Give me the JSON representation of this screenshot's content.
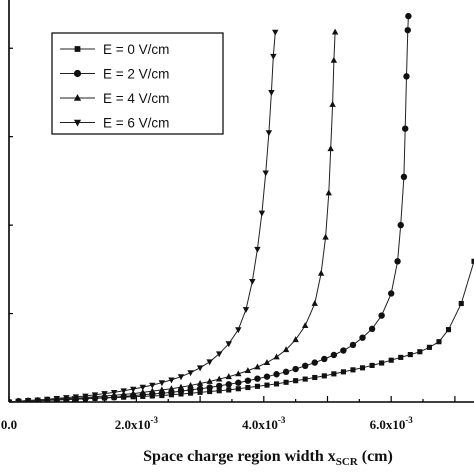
{
  "chart_data": {
    "type": "line",
    "xlabel": "Space charge region width x",
    "xlabel_sub": "SCR",
    "xlabel_unit": " (cm)",
    "ylabel": "",
    "xlim": [
      0,
      0.0073
    ],
    "ylim": [
      0,
      1.0
    ],
    "x_ticks": [
      {
        "value": 0,
        "label": "0.0"
      },
      {
        "value": 0.002,
        "label": "2.0x10",
        "exp": "-3"
      },
      {
        "value": 0.004,
        "label": "4.0x10",
        "exp": "-3"
      },
      {
        "value": 0.006,
        "label": "6.0x10",
        "exp": "-3"
      }
    ],
    "legend_position": "top-left",
    "series": [
      {
        "name": "E = 0 V/cm",
        "marker": "square",
        "points": [
          [
            0,
            0
          ],
          [
            0.00015,
            0.001
          ],
          [
            0.0003,
            0.002
          ],
          [
            0.00045,
            0.003
          ],
          [
            0.0006,
            0.004
          ],
          [
            0.00075,
            0.005
          ],
          [
            0.0009,
            0.006
          ],
          [
            0.00105,
            0.007
          ],
          [
            0.0012,
            0.008
          ],
          [
            0.00135,
            0.009
          ],
          [
            0.0015,
            0.01
          ],
          [
            0.00165,
            0.011
          ],
          [
            0.0018,
            0.012
          ],
          [
            0.00195,
            0.013
          ],
          [
            0.0021,
            0.014
          ],
          [
            0.00225,
            0.015
          ],
          [
            0.0024,
            0.016
          ],
          [
            0.00255,
            0.018
          ],
          [
            0.0027,
            0.02
          ],
          [
            0.00285,
            0.022
          ],
          [
            0.003,
            0.024
          ],
          [
            0.00315,
            0.026
          ],
          [
            0.0033,
            0.028
          ],
          [
            0.00345,
            0.03
          ],
          [
            0.0036,
            0.033
          ],
          [
            0.00375,
            0.036
          ],
          [
            0.0039,
            0.039
          ],
          [
            0.00405,
            0.042
          ],
          [
            0.0042,
            0.045
          ],
          [
            0.00435,
            0.049
          ],
          [
            0.0045,
            0.053
          ],
          [
            0.00465,
            0.057
          ],
          [
            0.0048,
            0.061
          ],
          [
            0.00495,
            0.065
          ],
          [
            0.0051,
            0.07
          ],
          [
            0.00525,
            0.075
          ],
          [
            0.0054,
            0.08
          ],
          [
            0.00555,
            0.085
          ],
          [
            0.0057,
            0.091
          ],
          [
            0.00585,
            0.097
          ],
          [
            0.006,
            0.104
          ],
          [
            0.00615,
            0.111
          ],
          [
            0.0063,
            0.118
          ],
          [
            0.00645,
            0.125
          ],
          [
            0.0066,
            0.136
          ],
          [
            0.00675,
            0.15
          ],
          [
            0.0069,
            0.18
          ],
          [
            0.0071,
            0.245
          ],
          [
            0.0073,
            0.35
          ]
        ]
      },
      {
        "name": "E = 2 V/cm",
        "marker": "circle",
        "points": [
          [
            0,
            0
          ],
          [
            0.00015,
            0.002
          ],
          [
            0.0003,
            0.003
          ],
          [
            0.00045,
            0.004
          ],
          [
            0.0006,
            0.005
          ],
          [
            0.00075,
            0.006
          ],
          [
            0.0009,
            0.007
          ],
          [
            0.00105,
            0.008
          ],
          [
            0.0012,
            0.009
          ],
          [
            0.00135,
            0.01
          ],
          [
            0.0015,
            0.011
          ],
          [
            0.00165,
            0.012
          ],
          [
            0.0018,
            0.014
          ],
          [
            0.00195,
            0.016
          ],
          [
            0.0021,
            0.018
          ],
          [
            0.00225,
            0.02
          ],
          [
            0.0024,
            0.022
          ],
          [
            0.00255,
            0.024
          ],
          [
            0.0027,
            0.027
          ],
          [
            0.00285,
            0.03
          ],
          [
            0.003,
            0.033
          ],
          [
            0.00315,
            0.036
          ],
          [
            0.0033,
            0.04
          ],
          [
            0.00345,
            0.044
          ],
          [
            0.0036,
            0.048
          ],
          [
            0.00375,
            0.053
          ],
          [
            0.0039,
            0.058
          ],
          [
            0.00405,
            0.063
          ],
          [
            0.0042,
            0.069
          ],
          [
            0.00435,
            0.075
          ],
          [
            0.0045,
            0.082
          ],
          [
            0.00465,
            0.09
          ],
          [
            0.0048,
            0.098
          ],
          [
            0.00495,
            0.107
          ],
          [
            0.0051,
            0.117
          ],
          [
            0.00525,
            0.128
          ],
          [
            0.0054,
            0.142
          ],
          [
            0.00555,
            0.16
          ],
          [
            0.0057,
            0.182
          ],
          [
            0.00585,
            0.215
          ],
          [
            0.006,
            0.27
          ],
          [
            0.0061,
            0.35
          ],
          [
            0.00615,
            0.44
          ],
          [
            0.0062,
            0.56
          ],
          [
            0.00622,
            0.68
          ],
          [
            0.00624,
            0.81
          ],
          [
            0.00626,
            0.925
          ],
          [
            0.00627,
            0.96
          ]
        ]
      },
      {
        "name": "E = 4 V/cm",
        "marker": "triangle-up",
        "points": [
          [
            0,
            0
          ],
          [
            0.00015,
            0.002
          ],
          [
            0.0003,
            0.003
          ],
          [
            0.00045,
            0.004
          ],
          [
            0.0006,
            0.005
          ],
          [
            0.00075,
            0.007
          ],
          [
            0.0009,
            0.008
          ],
          [
            0.00105,
            0.01
          ],
          [
            0.0012,
            0.011
          ],
          [
            0.00135,
            0.013
          ],
          [
            0.0015,
            0.015
          ],
          [
            0.00165,
            0.017
          ],
          [
            0.0018,
            0.019
          ],
          [
            0.00195,
            0.021
          ],
          [
            0.0021,
            0.024
          ],
          [
            0.00225,
            0.027
          ],
          [
            0.0024,
            0.03
          ],
          [
            0.00255,
            0.033
          ],
          [
            0.0027,
            0.037
          ],
          [
            0.00285,
            0.041
          ],
          [
            0.003,
            0.046
          ],
          [
            0.00315,
            0.051
          ],
          [
            0.0033,
            0.057
          ],
          [
            0.00345,
            0.063
          ],
          [
            0.0036,
            0.07
          ],
          [
            0.00375,
            0.078
          ],
          [
            0.0039,
            0.087
          ],
          [
            0.00405,
            0.098
          ],
          [
            0.0042,
            0.112
          ],
          [
            0.00435,
            0.13
          ],
          [
            0.0045,
            0.155
          ],
          [
            0.00465,
            0.19
          ],
          [
            0.0048,
            0.245
          ],
          [
            0.0049,
            0.32
          ],
          [
            0.00497,
            0.41
          ],
          [
            0.00502,
            0.52
          ],
          [
            0.00505,
            0.63
          ],
          [
            0.00508,
            0.74
          ],
          [
            0.0051,
            0.85
          ],
          [
            0.00512,
            0.92
          ]
        ]
      },
      {
        "name": "E = 6 V/cm",
        "marker": "triangle-down",
        "points": [
          [
            0,
            0
          ],
          [
            0.00015,
            0.002
          ],
          [
            0.0003,
            0.004
          ],
          [
            0.00045,
            0.005
          ],
          [
            0.0006,
            0.007
          ],
          [
            0.00075,
            0.009
          ],
          [
            0.0009,
            0.011
          ],
          [
            0.00105,
            0.013
          ],
          [
            0.0012,
            0.015
          ],
          [
            0.00135,
            0.018
          ],
          [
            0.0015,
            0.021
          ],
          [
            0.00165,
            0.024
          ],
          [
            0.0018,
            0.028
          ],
          [
            0.00195,
            0.032
          ],
          [
            0.0021,
            0.037
          ],
          [
            0.00225,
            0.042
          ],
          [
            0.0024,
            0.048
          ],
          [
            0.00255,
            0.055
          ],
          [
            0.0027,
            0.063
          ],
          [
            0.00285,
            0.073
          ],
          [
            0.003,
            0.085
          ],
          [
            0.00315,
            0.1
          ],
          [
            0.0033,
            0.12
          ],
          [
            0.00345,
            0.145
          ],
          [
            0.0036,
            0.18
          ],
          [
            0.00372,
            0.23
          ],
          [
            0.00382,
            0.3
          ],
          [
            0.0039,
            0.38
          ],
          [
            0.00397,
            0.47
          ],
          [
            0.00403,
            0.57
          ],
          [
            0.00408,
            0.67
          ],
          [
            0.00412,
            0.77
          ],
          [
            0.00415,
            0.86
          ],
          [
            0.00418,
            0.92
          ]
        ]
      }
    ]
  }
}
